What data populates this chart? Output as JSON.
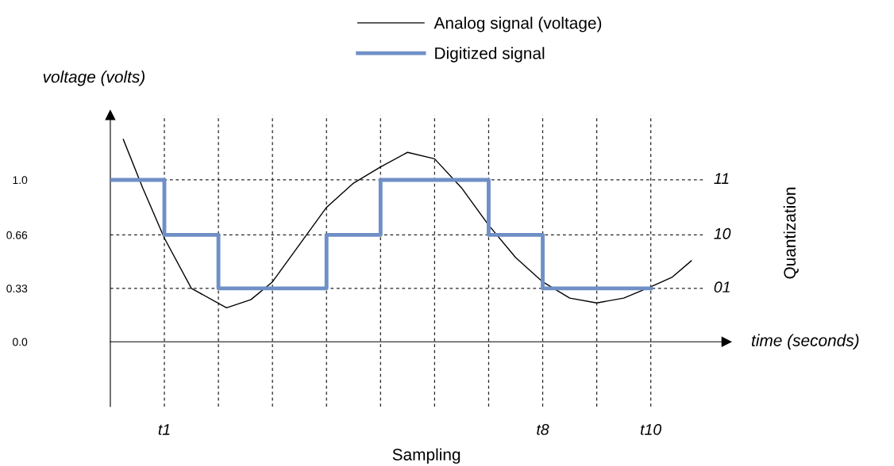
{
  "chart_data": {
    "type": "line",
    "series": [
      {
        "name": "Analog signal (voltage)",
        "color": "#000000",
        "x": [
          0.24,
          0.6,
          1.0,
          1.5,
          2.15,
          2.6,
          3.0,
          3.5,
          4.0,
          4.5,
          5.0,
          5.5,
          6.0,
          6.5,
          7.0,
          7.5,
          8.0,
          8.5,
          9.0,
          9.5,
          10.0,
          10.4,
          10.75
        ],
        "values": [
          1.25,
          0.95,
          0.64,
          0.33,
          0.21,
          0.26,
          0.37,
          0.6,
          0.83,
          0.98,
          1.08,
          1.17,
          1.13,
          0.95,
          0.72,
          0.52,
          0.37,
          0.27,
          0.24,
          0.27,
          0.34,
          0.4,
          0.5
        ]
      },
      {
        "name": "Digitized signal",
        "color": "#6f8fc6",
        "type": "step",
        "x": [
          0,
          1,
          2,
          3,
          4,
          5,
          6,
          7,
          8,
          9,
          10
        ],
        "values": [
          1.0,
          0.66,
          0.33,
          0.33,
          0.66,
          1.0,
          1.0,
          0.66,
          0.33,
          0.33,
          0.33
        ]
      }
    ],
    "xlim": [
      0,
      11.4
    ],
    "ylim": [
      -0.4,
      1.4
    ],
    "yticks": [
      {
        "value": 0,
        "label": "0.0"
      },
      0.33,
      0.66,
      {
        "value": 1.0,
        "label": "1.0"
      }
    ],
    "ref_lines": [
      {
        "axis": "x",
        "value": 1,
        "label": "t1"
      },
      {
        "axis": "x",
        "value": 2
      },
      {
        "axis": "x",
        "value": 3
      },
      {
        "axis": "x",
        "value": 4
      },
      {
        "axis": "x",
        "value": 5
      },
      {
        "axis": "x",
        "value": 6
      },
      {
        "axis": "x",
        "value": 7
      },
      {
        "axis": "x",
        "value": 8,
        "label": "t8"
      },
      {
        "axis": "x",
        "value": 9
      },
      {
        "axis": "x",
        "value": 10,
        "label": "t10"
      },
      {
        "axis": "y",
        "value": 0.33
      },
      {
        "axis": "y",
        "value": 0.66
      },
      {
        "axis": "y",
        "value": 1.0
      }
    ],
    "tick_labels": "y",
    "ylabel": "voltage (volts)",
    "xlabel": "time (seconds)",
    "y2label": "Quantization",
    "annotations": [
      "Sampling",
      "11",
      "10",
      "01"
    ],
    "legend": "top",
    "line_style": "solid",
    "marker": "none"
  }
}
